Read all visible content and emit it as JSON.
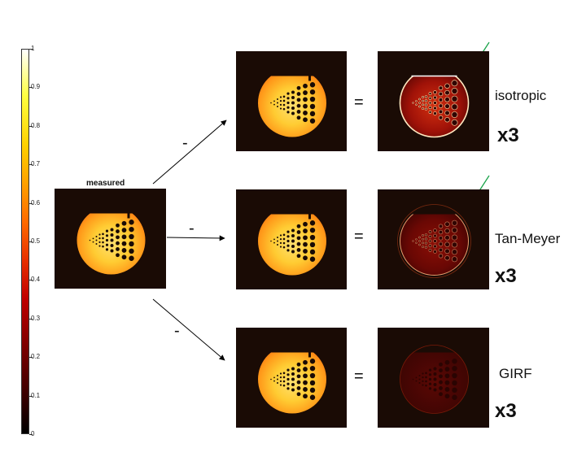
{
  "colorbar": {
    "ticks": [
      "1",
      "0.9",
      "0.8",
      "0.7",
      "0.6",
      "0.5",
      "0.4",
      "0.3",
      "0.2",
      "0.1",
      "0"
    ]
  },
  "measured_label": "measured",
  "minus_sign": "-",
  "equals_sign": "=",
  "rows": [
    {
      "label": "isotropic",
      "factor": "x3"
    },
    {
      "label": "Tan-Meyer",
      "factor": "x3"
    },
    {
      "label": "GIRF",
      "factor": "x3"
    }
  ],
  "colors": {
    "arrow": "#000000",
    "highlight_arrow": "#1aa34a",
    "panel_bg": "#1a0b05"
  }
}
